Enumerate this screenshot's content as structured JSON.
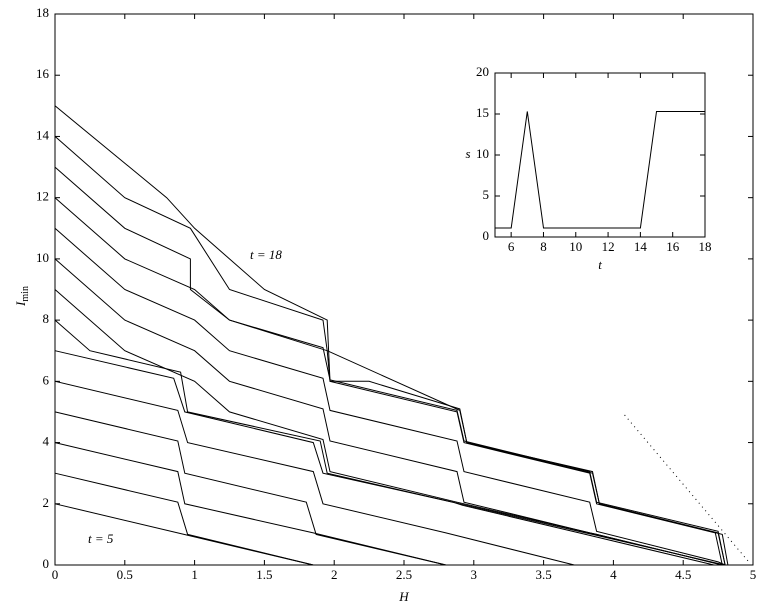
{
  "chart_data": [
    {
      "type": "line",
      "xlabel": "H",
      "ylabel": "I",
      "ylabel_sub": "min",
      "annotations": [
        "t = 18",
        "t = 5"
      ],
      "xlim": [
        0,
        5
      ],
      "ylim": [
        0,
        18
      ],
      "xticks": [
        0,
        0.5,
        1,
        1.5,
        2,
        2.5,
        3,
        3.5,
        4,
        4.5,
        5
      ],
      "yticks": [
        0,
        2,
        4,
        6,
        8,
        10,
        12,
        14,
        16,
        18
      ],
      "series": [
        {
          "color": "#000000",
          "x": [
            0,
            1.85
          ],
          "values": [
            2,
            0
          ]
        },
        {
          "color": "#000000",
          "x": [
            0,
            0.88,
            0.95,
            1.85
          ],
          "values": [
            3,
            2.05,
            1,
            0
          ]
        },
        {
          "color": "#000000",
          "x": [
            0,
            0.88,
            0.93,
            1.85,
            2.8
          ],
          "values": [
            4,
            3.05,
            2,
            1.05,
            0
          ]
        },
        {
          "color": "#000000",
          "x": [
            0,
            0.88,
            0.93,
            1.8,
            1.87,
            2.8
          ],
          "values": [
            5,
            4.05,
            3,
            2.05,
            1,
            0
          ]
        },
        {
          "color": "#000000",
          "x": [
            0,
            0.88,
            0.95,
            1.85,
            1.92,
            2.8,
            3.72
          ],
          "values": [
            6,
            5.05,
            4,
            3.05,
            2,
            1.05,
            0
          ]
        },
        {
          "color": "#000000",
          "x": [
            0,
            0.85,
            0.93,
            1.85,
            1.92,
            2.85,
            2.92,
            3.8,
            4.72
          ],
          "values": [
            7,
            6.1,
            5,
            4,
            3,
            2.05,
            1.95,
            1,
            0
          ]
        },
        {
          "color": "#000000",
          "x": [
            0,
            0.25,
            0.9,
            0.95,
            1.9,
            1.95,
            2.85,
            2.9,
            3.8,
            3.85,
            4.75,
            4.8
          ],
          "values": [
            8,
            7,
            6.3,
            5,
            4.05,
            3,
            2.05,
            2,
            1.05,
            1,
            0.05,
            0
          ]
        },
        {
          "color": "#000000",
          "x": [
            0,
            0.5,
            1,
            1.25,
            1.92,
            1.97,
            2.88,
            3.83,
            3.88,
            4.78
          ],
          "values": [
            9,
            7,
            6,
            5,
            4.1,
            3.05,
            2.05,
            1.05,
            1,
            0
          ]
        },
        {
          "color": "#000000",
          "x": [
            0,
            0.5,
            1,
            1.25,
            1.92,
            1.97,
            2.88,
            2.93,
            3.83,
            3.88,
            4.78
          ],
          "values": [
            10,
            8,
            7,
            6,
            5.1,
            4.05,
            3.05,
            2.05,
            1.05,
            1,
            0
          ]
        },
        {
          "color": "#000000",
          "x": [
            0,
            0.5,
            1,
            1.25,
            1.92,
            1.97,
            2.88,
            2.93,
            3.83,
            3.88,
            4.75,
            4.8
          ],
          "values": [
            11,
            9,
            8,
            7,
            6.1,
            5.05,
            4.05,
            3.05,
            2.05,
            1.1,
            0.1,
            0
          ]
        },
        {
          "color": "#000000",
          "x": [
            0,
            0.5,
            1,
            1.25,
            1.92,
            1.97,
            2.88,
            2.93,
            3.83,
            3.88,
            4.75,
            4.8
          ],
          "values": [
            12,
            10,
            9,
            8,
            7.1,
            6.05,
            5.05,
            4.05,
            3.05,
            2.05,
            1.1,
            0
          ]
        },
        {
          "color": "#000000",
          "x": [
            0,
            0.5,
            0.97,
            0.97,
            1.25,
            1.95,
            1.97,
            2.88,
            2.93,
            3.83,
            3.88,
            4.73,
            4.78
          ],
          "values": [
            13,
            11,
            10,
            9,
            8,
            7,
            6,
            5,
            4,
            3,
            2,
            1.05,
            0
          ]
        },
        {
          "color": "#000000",
          "x": [
            0,
            0.5,
            0.97,
            1.25,
            1.92,
            1.95,
            2.9,
            2.95,
            3.85,
            3.9,
            4.75,
            4.8
          ],
          "values": [
            14,
            12,
            11,
            9,
            8,
            7,
            5.05,
            4,
            3.05,
            2,
            1.05,
            0
          ]
        },
        {
          "color": "#000000",
          "x": [
            0,
            0.8,
            1,
            1.5,
            1.95,
            1.97,
            2.25,
            2.9,
            2.95,
            3.85,
            3.9,
            4.78,
            4.82
          ],
          "values": [
            15,
            12,
            11,
            9,
            8,
            6,
            6,
            5.1,
            4,
            3,
            2,
            1,
            0
          ]
        },
        {
          "color": "#000000",
          "style": "dotted",
          "x": [
            4.08,
            4.97
          ],
          "values": [
            4.9,
            0.1
          ]
        }
      ]
    },
    {
      "type": "line",
      "xlabel": "t",
      "ylabel": "s",
      "xlim": [
        5,
        18
      ],
      "ylim": [
        0,
        20
      ],
      "xticks": [
        6,
        8,
        10,
        12,
        14,
        16,
        18
      ],
      "yticks": [
        0,
        5,
        10,
        15,
        20
      ],
      "x": [
        5,
        6,
        7,
        8,
        9,
        10,
        11,
        12,
        13,
        14,
        15,
        16,
        17,
        18
      ],
      "series": [
        {
          "color": "#000000",
          "values": [
            1.1,
            1.1,
            15.3,
            1.1,
            1.1,
            1.1,
            1.1,
            1.1,
            1.1,
            1.1,
            15.3,
            15.3,
            15.3,
            15.3
          ]
        }
      ]
    }
  ]
}
